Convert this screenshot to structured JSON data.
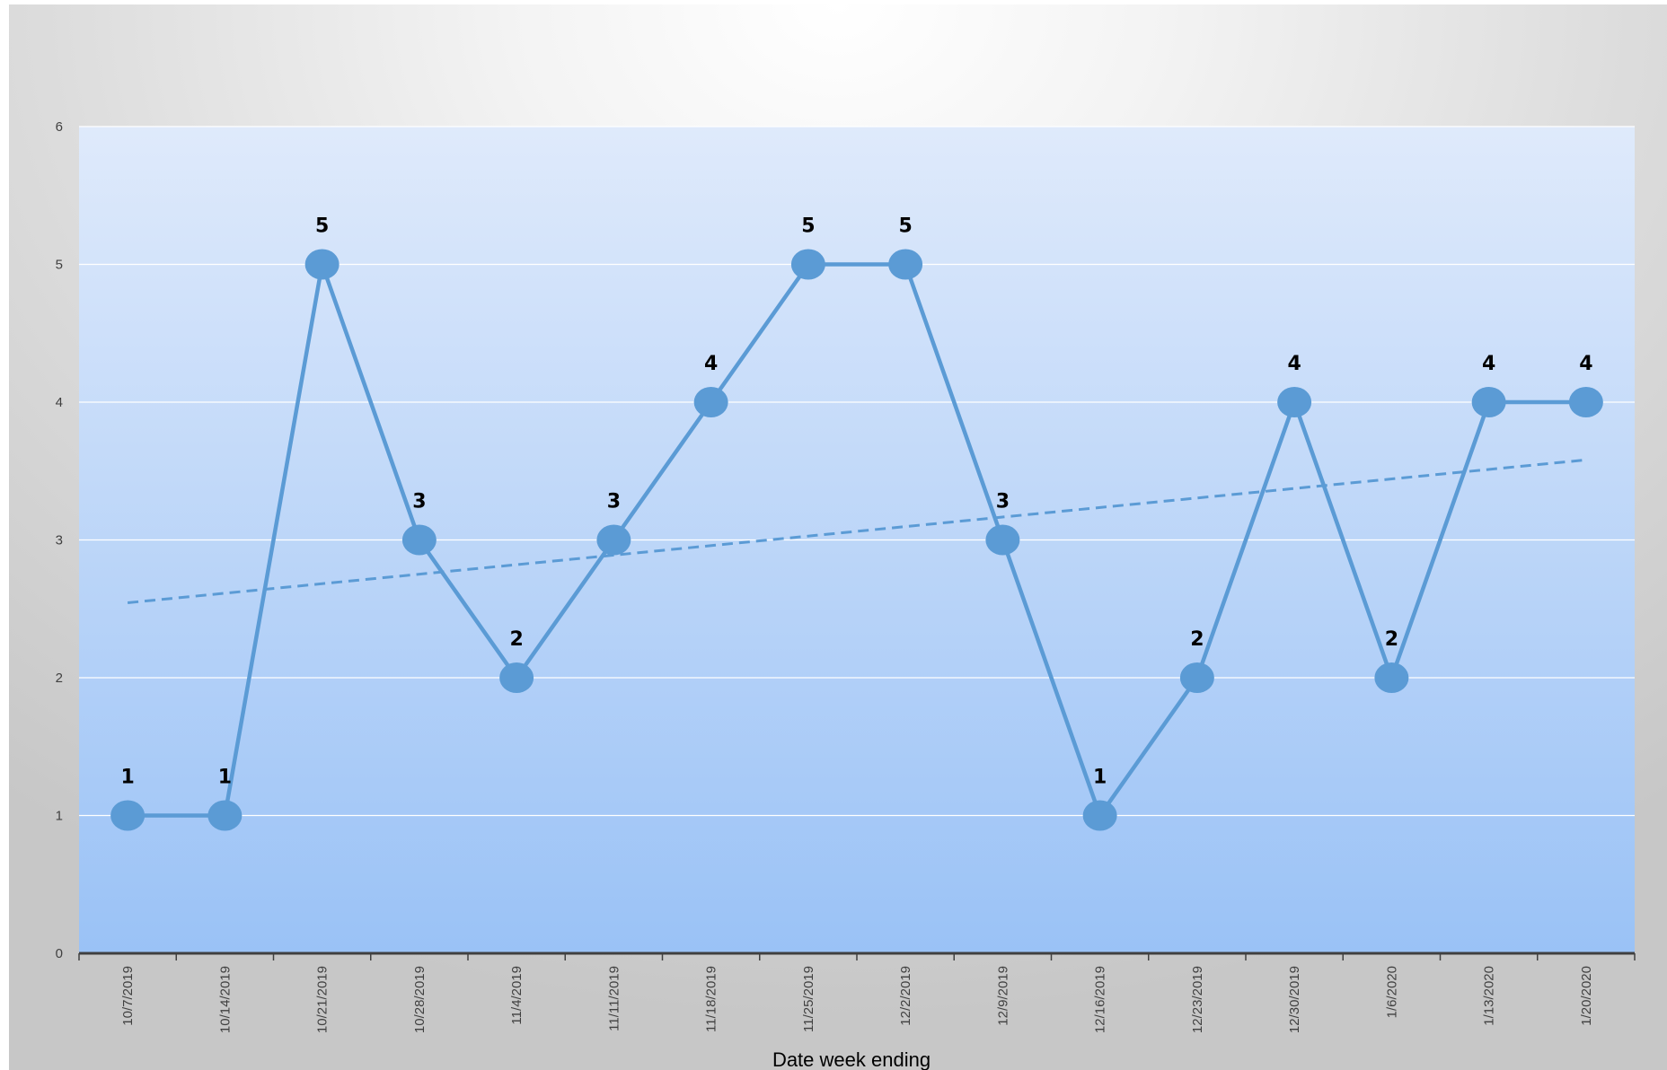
{
  "chart_data": {
    "type": "line",
    "title": "",
    "xlabel": "Date week ending",
    "ylabel": "",
    "categories": [
      "10/7/2019",
      "10/14/2019",
      "10/21/2019",
      "10/28/2019",
      "11/4/2019",
      "11/11/2019",
      "11/18/2019",
      "11/25/2019",
      "12/2/2019",
      "12/9/2019",
      "12/16/2019",
      "12/23/2019",
      "12/30/2019",
      "1/6/2020",
      "1/13/2020",
      "1/20/2020"
    ],
    "series": [
      {
        "name": "",
        "values": [
          1,
          1,
          5,
          3,
          2,
          3,
          4,
          5,
          5,
          3,
          1,
          2,
          4,
          2,
          4,
          4
        ],
        "data_labels": true,
        "color": "#5b9bd5"
      }
    ],
    "trendline": {
      "type": "linear",
      "style": "dashed",
      "color": "#5b9bd5"
    },
    "ylim": [
      0,
      6
    ],
    "yticks": [
      0,
      1,
      2,
      3,
      4,
      5,
      6
    ],
    "grid": true,
    "legend": "none",
    "plot_background": {
      "top": "#dfeafb",
      "bottom": "#9ac2f6"
    },
    "gridline_color": "#ffffff",
    "axis_color": "#404040"
  }
}
